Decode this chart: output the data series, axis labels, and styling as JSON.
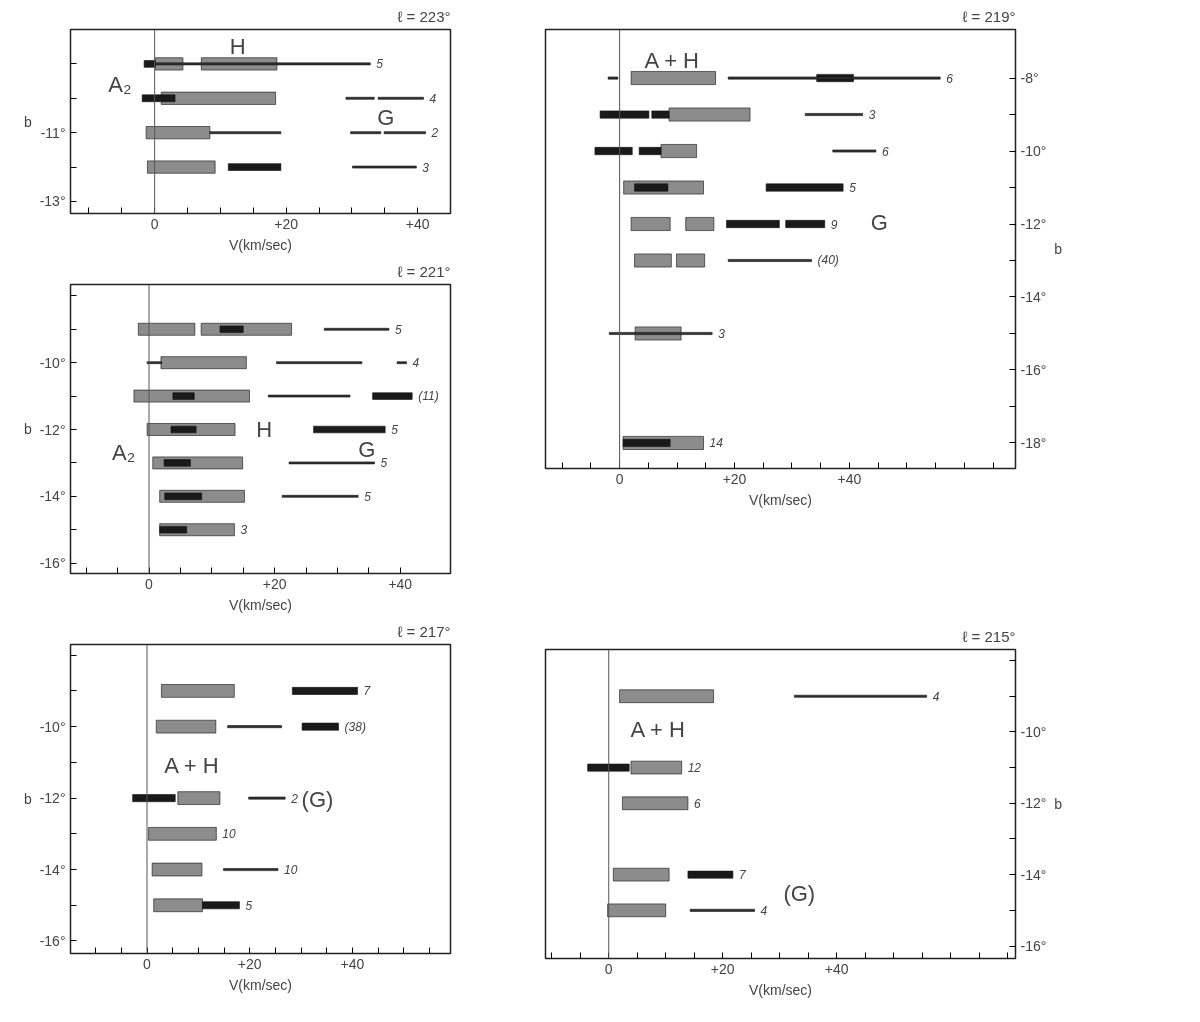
{
  "chart_data": [
    {
      "type": "bar",
      "orientation": "horizontal",
      "title": "ℓ = 223°",
      "xlabel": "V(km/sec)",
      "ylabel": "b",
      "xlim": [
        -12.8,
        45
      ],
      "ylim": [
        -13.35,
        -8.0
      ],
      "xticks": [
        {
          "value": -10,
          "label": null
        },
        {
          "value": -5,
          "label": null
        },
        0,
        {
          "value": 5,
          "label": null
        },
        {
          "value": 10,
          "label": null
        },
        {
          "value": 15,
          "label": null
        },
        {
          "value": 20,
          "label": "+20"
        },
        {
          "value": 25,
          "label": null
        },
        {
          "value": 30,
          "label": null
        },
        {
          "value": 35,
          "label": null
        },
        {
          "value": 40,
          "label": "+40"
        }
      ],
      "yticks": [
        {
          "value": -9,
          "label": null
        },
        {
          "value": -10,
          "label": null
        },
        {
          "value": -11,
          "label": "-11°"
        },
        {
          "value": -12,
          "label": null
        },
        {
          "value": -13,
          "label": "-13°"
        }
      ],
      "ref_lines": [
        {
          "axis": "x",
          "value": 0
        }
      ],
      "series": [
        {
          "color": "#8c8c8c",
          "x": [
            -9,
            -10,
            -11,
            -12
          ],
          "base": [
            0.1,
            1,
            -1.3,
            -1.1
          ],
          "values": [
            4.2,
            17.4,
            9.7,
            10.3
          ]
        },
        {
          "color": "#8c8c8c",
          "x": [
            -9
          ],
          "base": [
            7.1
          ],
          "values": [
            11.5
          ]
        },
        {
          "color": "#1a1a1a",
          "x": [
            -9,
            -10,
            -12
          ],
          "base": [
            -1.6,
            -1.9,
            11.2
          ],
          "values": [
            1.7,
            5.0,
            8.0
          ]
        },
        {
          "color": "#333333",
          "x": [
            -9,
            -10,
            -11,
            -12
          ],
          "base": [
            0,
            29.1,
            8.4,
            30.1
          ],
          "values": [
            32.8,
            4.3,
            10.8,
            9.7
          ]
        },
        {
          "color": "#333333",
          "x": [
            -10,
            -11
          ],
          "base": [
            34,
            29.8
          ],
          "values": [
            6.9,
            4.6
          ]
        },
        {
          "color": "#333333",
          "x": [
            -11
          ],
          "base": [
            34.9
          ],
          "values": [
            6.3
          ]
        }
      ],
      "annotations": [
        {
          "text": "5",
          "x": 32.8,
          "y": -9
        },
        {
          "text": "4",
          "x": 40.9,
          "y": -10
        },
        {
          "text": "2",
          "x": 41.2,
          "y": -11
        },
        {
          "text": "3",
          "x": 39.8,
          "y": -12
        },
        "H",
        "A₂",
        "G"
      ]
    },
    {
      "type": "bar",
      "orientation": "horizontal",
      "title": "ℓ = 221°",
      "xlabel": "V(km/sec)",
      "ylabel": "b",
      "xlim": [
        -12.5,
        48
      ],
      "ylim": [
        -16.31,
        -7.66
      ],
      "xticks": [
        {
          "value": -10,
          "label": null
        },
        {
          "value": -5,
          "label": null
        },
        0,
        {
          "value": 5,
          "label": null
        },
        {
          "value": 10,
          "label": null
        },
        {
          "value": 15,
          "label": null
        },
        {
          "value": 20,
          "label": "+20"
        },
        {
          "value": 25,
          "label": null
        },
        {
          "value": 30,
          "label": null
        },
        {
          "value": 35,
          "label": null
        },
        {
          "value": 40,
          "label": "+40"
        }
      ],
      "yticks": [
        {
          "value": -8,
          "label": null
        },
        {
          "value": -9,
          "label": null
        },
        {
          "value": -10,
          "label": "-10°"
        },
        {
          "value": -11,
          "label": null
        },
        {
          "value": -12,
          "label": "-12°"
        },
        {
          "value": -13,
          "label": null
        },
        {
          "value": -14,
          "label": "-14°"
        },
        {
          "value": -15,
          "label": null
        },
        {
          "value": -16,
          "label": "-16°"
        }
      ],
      "ref_lines": [
        {
          "axis": "x",
          "value": 0
        }
      ],
      "series": [
        {
          "color": "#8c8c8c",
          "x": [
            -9,
            -10,
            -11,
            -12,
            -13,
            -14,
            -15
          ],
          "base": [
            -1.7,
            1.9,
            -2.4,
            -0.3,
            0.6,
            1.7,
            1.7
          ],
          "values": [
            9.0,
            13.6,
            18.4,
            14.0,
            14.3,
            13.5,
            11.9
          ]
        },
        {
          "color": "#8c8c8c",
          "x": [
            -9
          ],
          "base": [
            8.3
          ],
          "values": [
            14.4
          ]
        },
        {
          "color": "#1a1a1a",
          "x": [
            -9,
            -11,
            -12,
            -13,
            -14,
            -15
          ],
          "base": [
            11.3,
            3.8,
            3.5,
            2.4,
            2.5,
            1.7
          ],
          "values": [
            3.7,
            3.4,
            4.0,
            4.2,
            5.9,
            4.3
          ]
        },
        {
          "color": "#1a1a1a",
          "x": [
            -11,
            -12
          ],
          "base": [
            35.6,
            26.2
          ],
          "values": [
            6.3,
            11.4
          ]
        },
        {
          "color": "#333333",
          "x": [
            -9,
            -10,
            -11,
            -13,
            -14
          ],
          "base": [
            27.9,
            -0.3,
            19,
            22.3,
            21.2
          ],
          "values": [
            10.3,
            2.3,
            13,
            13.6,
            12.1
          ]
        },
        {
          "color": "#333333",
          "x": [
            -10
          ],
          "base": [
            20.3
          ],
          "values": [
            13.6
          ]
        },
        {
          "color": "#333333",
          "x": [
            -10
          ],
          "base": [
            39.5
          ],
          "values": [
            1.5
          ]
        }
      ],
      "annotations": [
        {
          "text": "5",
          "x": 38.2,
          "y": -9
        },
        {
          "text": "4",
          "x": 41.0,
          "y": -10
        },
        {
          "text": "(11)",
          "x": 41.9,
          "y": -11
        },
        {
          "text": "5",
          "x": 37.6,
          "y": -12
        },
        {
          "text": "5",
          "x": 35.9,
          "y": -13
        },
        {
          "text": "5",
          "x": 33.3,
          "y": -14
        },
        {
          "text": "3",
          "x": 13.6,
          "y": -15
        },
        "H",
        "A₂",
        "G"
      ]
    },
    {
      "type": "bar",
      "orientation": "horizontal",
      "title": "ℓ = 217°",
      "xlabel": "V(km/sec)",
      "ylabel": "b",
      "xlim": [
        -14.9,
        59.1
      ],
      "ylim": [
        -16.35,
        -7.7
      ],
      "xticks": [
        {
          "value": -10,
          "label": null
        },
        {
          "value": -5,
          "label": null
        },
        0,
        {
          "value": 5,
          "label": null
        },
        {
          "value": 10,
          "label": null
        },
        {
          "value": 15,
          "label": null
        },
        {
          "value": 20,
          "label": "+20"
        },
        {
          "value": 25,
          "label": null
        },
        {
          "value": 30,
          "label": null
        },
        {
          "value": 35,
          "label": null
        },
        {
          "value": 40,
          "label": "+40"
        },
        {
          "value": 45,
          "label": null
        },
        {
          "value": 50,
          "label": null
        },
        {
          "value": 55,
          "label": null
        }
      ],
      "yticks": [
        {
          "value": -8,
          "label": null
        },
        {
          "value": -9,
          "label": null
        },
        {
          "value": -10,
          "label": "-10°"
        },
        {
          "value": -11,
          "label": null
        },
        {
          "value": -12,
          "label": "-12°"
        },
        {
          "value": -13,
          "label": null
        },
        {
          "value": -14,
          "label": "-14°"
        },
        {
          "value": -15,
          "label": null
        },
        {
          "value": -16,
          "label": "-16°"
        }
      ],
      "ref_lines": [
        {
          "axis": "x",
          "value": 0
        }
      ],
      "series": [
        {
          "color": "#8c8c8c",
          "x": [
            -9,
            -10,
            -12,
            -13,
            -14,
            -15
          ],
          "base": [
            2.8,
            1.8,
            6,
            0.3,
            1,
            1.3
          ],
          "values": [
            14.2,
            11.6,
            8.2,
            13.2,
            9.7,
            9.5
          ]
        },
        {
          "color": "#1a1a1a",
          "x": [
            -9,
            -10,
            -12,
            -15
          ],
          "base": [
            28.3,
            30.2,
            -2.8,
            10.8
          ],
          "values": [
            12.7,
            7.1,
            8.3,
            7.2
          ]
        },
        {
          "color": "#333333",
          "x": [
            -10,
            -12,
            -14
          ],
          "base": [
            15.7,
            19.8,
            14.9
          ],
          "values": [
            10.5,
            7.1,
            10.6
          ]
        }
      ],
      "annotations": [
        {
          "text": "7",
          "x": 41.0,
          "y": -9
        },
        {
          "text": "(38)",
          "x": 37.3,
          "y": -10
        },
        {
          "text": "2",
          "x": 26.9,
          "y": -12
        },
        {
          "text": "10",
          "x": 13.5,
          "y": -13
        },
        {
          "text": "10",
          "x": 25.5,
          "y": -14
        },
        {
          "text": "5",
          "x": 18.0,
          "y": -15
        },
        "A + H",
        "(G)"
      ]
    },
    {
      "type": "bar",
      "orientation": "horizontal",
      "title": "ℓ = 219°",
      "xlabel": "V(km/sec)",
      "ylabel": "b",
      "xlim": [
        -12.9,
        68.9
      ],
      "ylim": [
        -18.7,
        -6.67
      ],
      "xticks": [
        {
          "value": -10,
          "label": null
        },
        {
          "value": -5,
          "label": null
        },
        0,
        {
          "value": 5,
          "label": null
        },
        {
          "value": 10,
          "label": null
        },
        {
          "value": 15,
          "label": null
        },
        {
          "value": 20,
          "label": "+20"
        },
        {
          "value": 25,
          "label": null
        },
        {
          "value": 30,
          "label": null
        },
        {
          "value": 35,
          "label": null
        },
        {
          "value": 40,
          "label": "+40"
        },
        {
          "value": 45,
          "label": null
        },
        {
          "value": 50,
          "label": null
        },
        {
          "value": 55,
          "label": null
        },
        {
          "value": 60,
          "label": null
        },
        {
          "value": 65,
          "label": null
        }
      ],
      "yticks": [
        {
          "value": -8,
          "label": "-8°"
        },
        {
          "value": -9,
          "label": null
        },
        {
          "value": -10,
          "label": "-10°"
        },
        {
          "value": -11,
          "label": null
        },
        {
          "value": -12,
          "label": "-12°"
        },
        {
          "value": -13,
          "label": null
        },
        {
          "value": -14,
          "label": "-14°"
        },
        {
          "value": -15,
          "label": null
        },
        {
          "value": -16,
          "label": "-16°"
        },
        {
          "value": -17,
          "label": null
        },
        {
          "value": -18,
          "label": "-18°"
        }
      ],
      "ref_lines": [
        {
          "axis": "x",
          "value": 0
        }
      ],
      "series": [
        {
          "color": "#8c8c8c",
          "x": [
            -8,
            -9,
            -10,
            -11,
            -12,
            -13,
            -15,
            -18
          ],
          "base": [
            2,
            8.6,
            7.2,
            0.7,
            2,
            2.6,
            2.7,
            0.6
          ],
          "values": [
            14.7,
            14.1,
            6.2,
            13.9,
            6.8,
            6.4,
            8.0,
            14.0
          ]
        },
        {
          "color": "#8c8c8c",
          "x": [
            -12,
            -13
          ],
          "base": [
            11.5,
            9.9
          ],
          "values": [
            4.9,
            4.9
          ]
        },
        {
          "color": "#1a1a1a",
          "x": [
            -8,
            -9,
            -10,
            -11,
            -12,
            -18
          ],
          "base": [
            34.3,
            -3.4,
            -4.3,
            2.6,
            18.6,
            0.6
          ],
          "values": [
            6.4,
            8.5,
            6.5,
            5.8,
            9.2,
            8.2
          ]
        },
        {
          "color": "#1a1a1a",
          "x": [
            -9,
            -10,
            -11,
            -12
          ],
          "base": [
            5.6,
            3.4,
            25.5,
            28.9
          ],
          "values": [
            3.0,
            3.8,
            13.4,
            6.8
          ]
        },
        {
          "color": "#333333",
          "x": [
            -8,
            -9,
            -10,
            -13,
            -15
          ],
          "base": [
            -2,
            32.3,
            37.1,
            18.9,
            -1.8
          ],
          "values": [
            1.7,
            10,
            7.5,
            14.5,
            17.9
          ]
        },
        {
          "color": "#333333",
          "x": [
            -8
          ],
          "base": [
            18.9
          ],
          "values": [
            36.9
          ]
        }
      ],
      "annotations": [
        {
          "text": "6",
          "x": 55.8,
          "y": -8
        },
        {
          "text": "3",
          "x": 42.3,
          "y": -9
        },
        {
          "text": "6",
          "x": 44.6,
          "y": -10
        },
        {
          "text": "5",
          "x": 38.9,
          "y": -11
        },
        {
          "text": "9",
          "x": 35.7,
          "y": -12
        },
        {
          "text": "(40)",
          "x": 33.4,
          "y": -13
        },
        {
          "text": "3",
          "x": 16.1,
          "y": -15
        },
        {
          "text": "14",
          "x": 14.6,
          "y": -18
        },
        "A + H",
        "G"
      ]
    },
    {
      "type": "bar",
      "orientation": "horizontal",
      "title": "ℓ = 215°",
      "xlabel": "V(km/sec)",
      "ylabel": "b",
      "xlim": [
        -11.1,
        71.4
      ],
      "ylim": [
        -16.35,
        -7.69
      ],
      "xticks": [
        {
          "value": -10,
          "label": null
        },
        {
          "value": -5,
          "label": null
        },
        0,
        {
          "value": 5,
          "label": null
        },
        {
          "value": 10,
          "label": null
        },
        {
          "value": 15,
          "label": null
        },
        {
          "value": 20,
          "label": "+20"
        },
        {
          "value": 25,
          "label": null
        },
        {
          "value": 30,
          "label": null
        },
        {
          "value": 35,
          "label": null
        },
        {
          "value": 40,
          "label": "+40"
        },
        {
          "value": 45,
          "label": null
        },
        {
          "value": 50,
          "label": null
        },
        {
          "value": 55,
          "label": null
        },
        {
          "value": 60,
          "label": null
        },
        {
          "value": 65,
          "label": null
        },
        {
          "value": 70,
          "label": null
        }
      ],
      "yticks": [
        {
          "value": -8,
          "label": null
        },
        {
          "value": -9,
          "label": null
        },
        {
          "value": -10,
          "label": "-10°"
        },
        {
          "value": -11,
          "label": null
        },
        {
          "value": -12,
          "label": "-12°"
        },
        {
          "value": -13,
          "label": null
        },
        {
          "value": -14,
          "label": "-14°"
        },
        {
          "value": -15,
          "label": null
        },
        {
          "value": -16,
          "label": "-16°"
        }
      ],
      "ref_lines": [
        {
          "axis": "x",
          "value": 0
        }
      ],
      "series": [
        {
          "color": "#8c8c8c",
          "x": [
            -9,
            -11,
            -12,
            -14,
            -15
          ],
          "base": [
            1.9,
            3.9,
            2.4,
            0.8,
            -0.2
          ],
          "values": [
            16.5,
            8.9,
            11.5,
            9.8,
            10.2
          ]
        },
        {
          "color": "#1a1a1a",
          "x": [
            -11,
            -14
          ],
          "base": [
            -3.7,
            13.9
          ],
          "values": [
            7.3,
            7.9
          ]
        },
        {
          "color": "#333333",
          "x": [
            -9,
            -15
          ],
          "base": [
            32.6,
            14.3
          ],
          "values": [
            23.2,
            11.3
          ]
        }
      ],
      "annotations": [
        {
          "text": "4",
          "x": 55.8,
          "y": -9
        },
        {
          "text": "12",
          "x": 12.8,
          "y": -11
        },
        {
          "text": "6",
          "x": 13.9,
          "y": -12
        },
        {
          "text": "7",
          "x": 21.8,
          "y": -14
        },
        {
          "text": "4",
          "x": 25.6,
          "y": -15
        },
        "A + H",
        "(G)"
      ]
    }
  ]
}
